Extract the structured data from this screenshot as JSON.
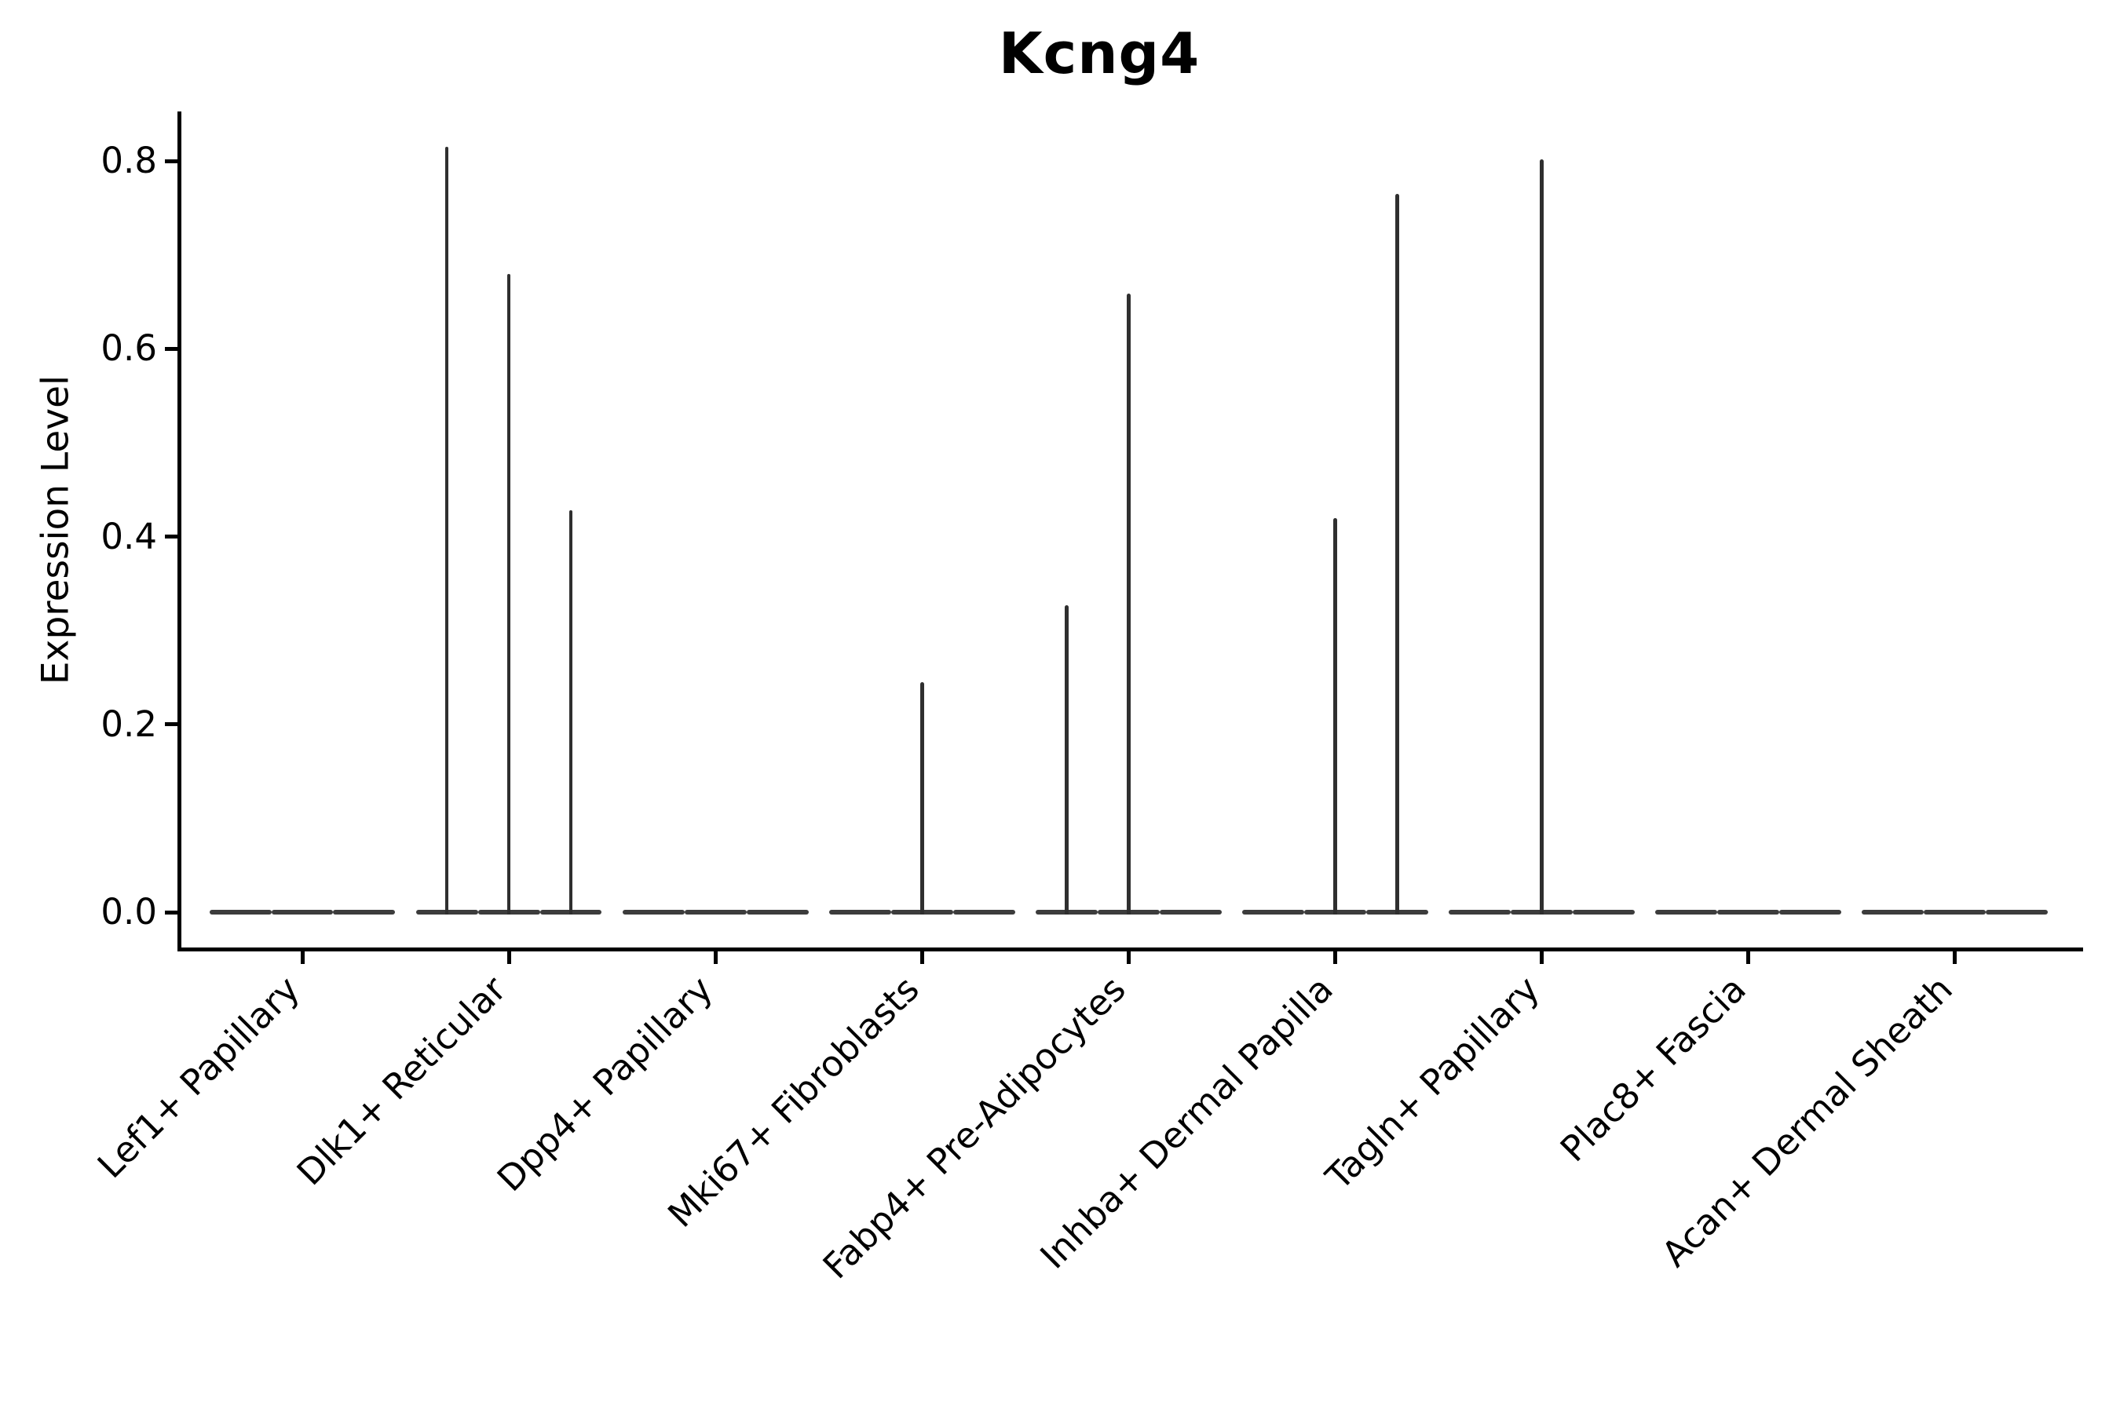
{
  "chart_data": {
    "type": "violin",
    "title": "Kcng4",
    "ylabel": "Expression Level",
    "xlabel": "",
    "ylim": [
      -0.04,
      0.855
    ],
    "grid": false,
    "legend": "none",
    "yticks": [
      {
        "label": "0.0",
        "value": 0.0
      },
      {
        "label": "0.2",
        "value": 0.2
      },
      {
        "label": "0.4",
        "value": 0.4
      },
      {
        "label": "0.6",
        "value": 0.6
      },
      {
        "label": "0.8",
        "value": 0.8
      }
    ],
    "categories": [
      "Lef1+ Papillary",
      "Dlk1+ Reticular",
      "Dpp4+ Papillary",
      "Mki67+ Fibroblasts",
      "Fabp4+ Pre-Adipocytes",
      "Inhba+ Dermal Papilla",
      "Tagln+ Papillary",
      "Plac8+ Fascia",
      "Acan+ Dermal Sheath"
    ],
    "sub_violin_offsets": [
      -0.3,
      0.0,
      0.3
    ],
    "violins": [
      {
        "category": "Lef1+ Papillary",
        "sub_max_values": [
          0,
          0,
          0
        ]
      },
      {
        "category": "Dlk1+ Reticular",
        "sub_max_values": [
          0.815,
          0.68,
          0.428
        ]
      },
      {
        "category": "Dpp4+ Papillary",
        "sub_max_values": [
          0,
          0,
          0
        ]
      },
      {
        "category": "Mki67+ Fibroblasts",
        "sub_max_values": [
          0,
          0.245,
          0
        ]
      },
      {
        "category": "Fabp4+ Pre-Adipocytes",
        "sub_max_values": [
          0.327,
          0.659,
          0
        ]
      },
      {
        "category": "Inhba+ Dermal Papilla",
        "sub_max_values": [
          0,
          0.42,
          0.765
        ]
      },
      {
        "category": "Tagln+ Papillary",
        "sub_max_values": [
          0,
          0.802,
          0
        ]
      },
      {
        "category": "Plac8+ Fascia",
        "sub_max_values": [
          0,
          0,
          0
        ]
      },
      {
        "category": "Acan+ Dermal Sheath",
        "sub_max_values": [
          0,
          0,
          0
        ]
      }
    ],
    "baseline_value": 0.0,
    "colors": {
      "spike": "#2f2f2f",
      "baseline": "#3c3c3c",
      "axis": "#000000",
      "text": "#000000",
      "background": "#ffffff"
    }
  }
}
